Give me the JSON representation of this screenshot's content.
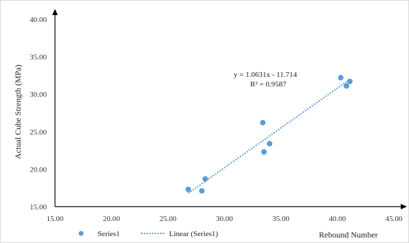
{
  "chart_data": {
    "type": "scatter",
    "xlabel": "Rebound Number",
    "ylabel": "Actual Cube Strength (MPa)",
    "xlim": [
      15,
      45
    ],
    "ylim": [
      15,
      40
    ],
    "x_ticks": [
      "15.00",
      "20.00",
      "25.00",
      "30.00",
      "35.00",
      "40.00",
      "45.00"
    ],
    "y_ticks": [
      "15.00",
      "20.00",
      "25.00",
      "30.00",
      "35.00",
      "40.00"
    ],
    "grid": false,
    "legend_position": "bottom",
    "series": [
      {
        "name": "Series1",
        "color": "#5b9bd5",
        "x": [
          26.8,
          28.0,
          28.3,
          33.4,
          33.5,
          34.0,
          40.3,
          40.8,
          41.1
        ],
        "y": [
          17.3,
          17.1,
          18.7,
          26.2,
          22.3,
          23.4,
          32.2,
          31.1,
          31.7
        ]
      }
    ],
    "trendline": {
      "name": "Linear (Series1)",
      "color": "#5b9bd5",
      "style": "dotted",
      "slope": 1.0631,
      "intercept": -11.714,
      "x_range": [
        26.8,
        41.1
      ],
      "equation": "y = 1.0631x - 11.714",
      "r_squared": "R² = 0.9587"
    }
  }
}
